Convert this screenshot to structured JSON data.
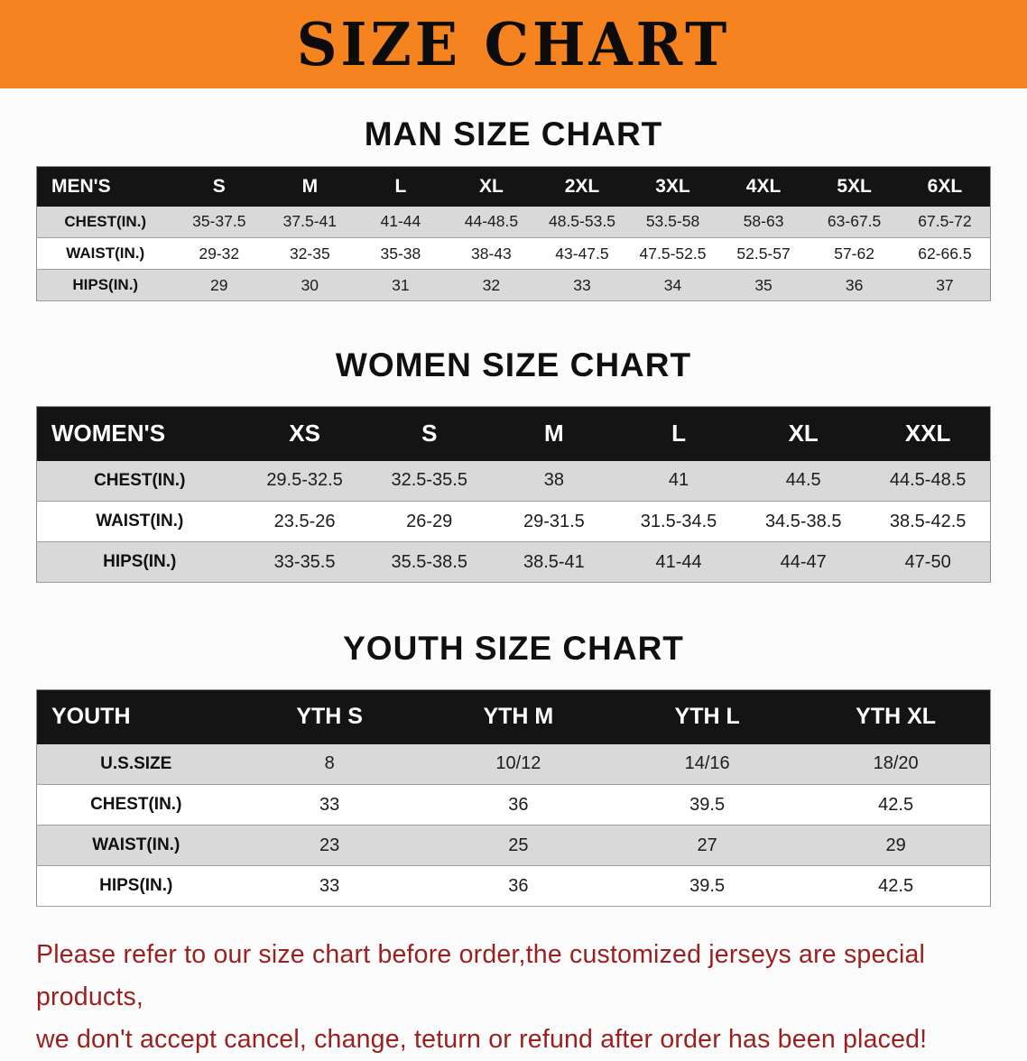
{
  "banner": {
    "title": "SIZE CHART"
  },
  "colors": {
    "banner_bg": "#f5831f",
    "header_bg": "#141414",
    "row_alt": "#d9d9d9",
    "footer_color": "#9c1f1f"
  },
  "tables": [
    {
      "id": "men",
      "heading": "MAN SIZE CHART",
      "header": [
        "MEN'S",
        "S",
        "M",
        "L",
        "XL",
        "2XL",
        "3XL",
        "4XL",
        "5XL",
        "6XL"
      ],
      "rows": [
        [
          "CHEST(IN.)",
          "35-37.5",
          "37.5-41",
          "41-44",
          "44-48.5",
          "48.5-53.5",
          "53.5-58",
          "58-63",
          "63-67.5",
          "67.5-72"
        ],
        [
          "WAIST(IN.)",
          "29-32",
          "32-35",
          "35-38",
          "38-43",
          "43-47.5",
          "47.5-52.5",
          "52.5-57",
          "57-62",
          "62-66.5"
        ],
        [
          "HIPS(IN.)",
          "29",
          "30",
          "31",
          "32",
          "33",
          "34",
          "35",
          "36",
          "37"
        ]
      ]
    },
    {
      "id": "women",
      "heading": "WOMEN SIZE CHART",
      "header": [
        "WOMEN'S",
        "XS",
        "S",
        "M",
        "L",
        "XL",
        "XXL"
      ],
      "rows": [
        [
          "CHEST(IN.)",
          "29.5-32.5",
          "32.5-35.5",
          "38",
          "41",
          "44.5",
          "44.5-48.5"
        ],
        [
          "WAIST(IN.)",
          "23.5-26",
          "26-29",
          "29-31.5",
          "31.5-34.5",
          "34.5-38.5",
          "38.5-42.5"
        ],
        [
          "HIPS(IN.)",
          "33-35.5",
          "35.5-38.5",
          "38.5-41",
          "41-44",
          "44-47",
          "47-50"
        ]
      ]
    },
    {
      "id": "youth",
      "heading": "YOUTH SIZE CHART",
      "header": [
        "YOUTH",
        "YTH S",
        "YTH M",
        "YTH L",
        "YTH XL"
      ],
      "rows": [
        [
          "U.S.SIZE",
          "8",
          "10/12",
          "14/16",
          "18/20"
        ],
        [
          "CHEST(IN.)",
          "33",
          "36",
          "39.5",
          "42.5"
        ],
        [
          "WAIST(IN.)",
          "23",
          "25",
          "27",
          "29"
        ],
        [
          "HIPS(IN.)",
          "33",
          "36",
          "39.5",
          "42.5"
        ]
      ]
    }
  ],
  "footer": {
    "line1": "Please refer to our size chart before order,the customized jerseys are special products,",
    "line2": "we don't accept cancel, change, teturn or refund after order has been placed!"
  }
}
